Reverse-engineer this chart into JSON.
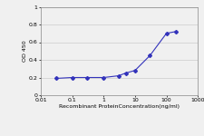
{
  "x": [
    0.03,
    0.1,
    0.3,
    1.0,
    3.0,
    5.0,
    10.0,
    30.0,
    100.0,
    200.0
  ],
  "y": [
    0.19,
    0.2,
    0.2,
    0.2,
    0.22,
    0.25,
    0.28,
    0.45,
    0.7,
    0.72
  ],
  "xlim": [
    0.01,
    1000
  ],
  "ylim": [
    0,
    1.0
  ],
  "yticks": [
    0,
    0.2,
    0.4,
    0.6,
    0.8,
    1.0
  ],
  "ytick_labels": [
    "0",
    "0.2",
    "0.4",
    "0.6",
    "0.8",
    "1"
  ],
  "xtick_labels": [
    "0.01",
    "0.1",
    "1",
    "10",
    "100",
    "1000"
  ],
  "xtick_vals": [
    0.01,
    0.1,
    1,
    10,
    100,
    1000
  ],
  "xlabel": "Recombinant ProteinConcentration(ng/ml)",
  "ylabel": "OD 450",
  "line_color": "#3333bb",
  "marker": "D",
  "marker_size": 2.0,
  "line_width": 0.8,
  "bg_color": "#f0f0f0",
  "plot_bg": "#f0f0f0",
  "grid_color": "#cccccc",
  "label_fontsize": 4.5,
  "tick_fontsize": 4.5
}
